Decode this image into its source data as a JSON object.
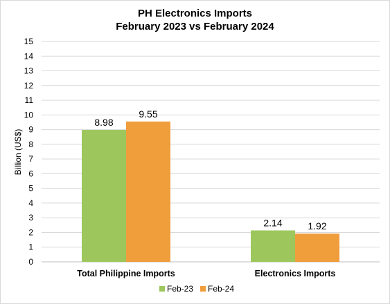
{
  "chart_data": {
    "type": "bar",
    "title_line1": "PH Electronics Imports",
    "title_line2": "February 2023 vs February 2024",
    "xlabel": "",
    "ylabel": "Billion (US$)",
    "ylim": [
      0,
      15
    ],
    "yticks": [
      0,
      1,
      2,
      3,
      4,
      5,
      6,
      7,
      8,
      9,
      10,
      11,
      12,
      13,
      14,
      15
    ],
    "categories": [
      "Total Philippine Imports",
      "Electronics Imports"
    ],
    "series": [
      {
        "name": "Feb-23",
        "color": "#9dc75c",
        "values": [
          8.98,
          2.14
        ]
      },
      {
        "name": "Feb-24",
        "color": "#f09d3c",
        "values": [
          9.55,
          1.92
        ]
      }
    ],
    "grid": true,
    "legend_position": "bottom-center",
    "data_labels": [
      [
        "8.98",
        "2.14"
      ],
      [
        "9.55",
        "1.92"
      ]
    ]
  }
}
